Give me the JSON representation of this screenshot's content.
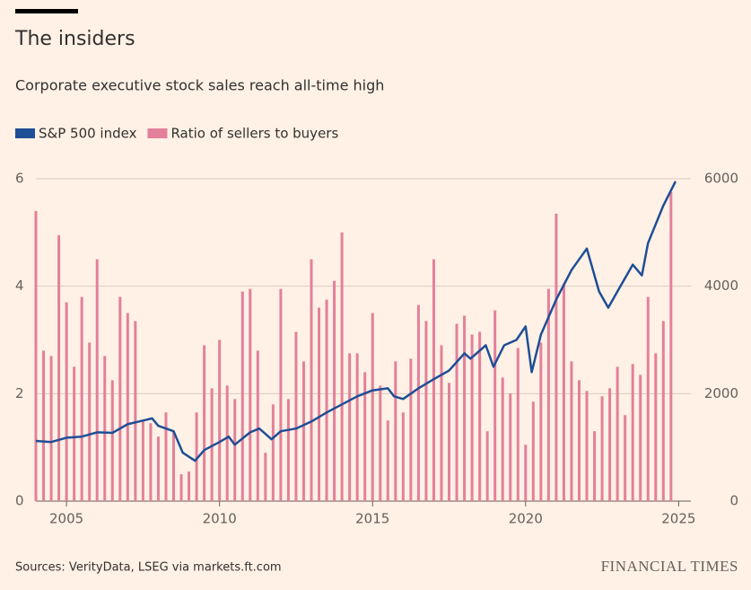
{
  "chart_data": {
    "type": "bar_line",
    "title": "The insiders",
    "subtitle": "Corporate executive stock sales reach all-time high",
    "source": "Sources: VerityData, LSEG via markets.ft.com",
    "brand": "FINANCIAL TIMES",
    "xlim": [
      2004,
      2025.4
    ],
    "xticks": [
      2005,
      2010,
      2015,
      2020,
      2025
    ],
    "ylim": [
      0,
      6
    ],
    "yticks": [
      0,
      2,
      4,
      6
    ],
    "y2lim": [
      0,
      6000
    ],
    "y2ticks": [
      0,
      2000,
      4000,
      6000
    ],
    "grid": true,
    "series": [
      {
        "name": "S&P 500 index",
        "color": "#1f4e96",
        "axis": "y2",
        "kind": "line",
        "x": [
          2004,
          2004.5,
          2005,
          2005.5,
          2006,
          2006.5,
          2007,
          2007.5,
          2007.8,
          2008,
          2008.5,
          2008.8,
          2009.2,
          2009.5,
          2010,
          2010.3,
          2010.5,
          2011,
          2011.3,
          2011.7,
          2012,
          2012.5,
          2013,
          2013.5,
          2014,
          2014.5,
          2015,
          2015.5,
          2015.7,
          2016,
          2016.5,
          2017,
          2017.5,
          2018,
          2018.2,
          2018.7,
          2018.95,
          2019.3,
          2019.7,
          2020,
          2020.2,
          2020.5,
          2021,
          2021.5,
          2022,
          2022.4,
          2022.7,
          2023,
          2023.5,
          2023.8,
          2024,
          2024.5,
          2024.9
        ],
        "values": [
          1120,
          1100,
          1180,
          1200,
          1280,
          1270,
          1430,
          1500,
          1540,
          1400,
          1300,
          900,
          750,
          950,
          1100,
          1200,
          1050,
          1280,
          1350,
          1150,
          1300,
          1350,
          1480,
          1650,
          1800,
          1950,
          2060,
          2100,
          1950,
          1900,
          2100,
          2270,
          2430,
          2750,
          2650,
          2900,
          2500,
          2900,
          3000,
          3250,
          2400,
          3100,
          3750,
          4300,
          4700,
          3900,
          3600,
          3900,
          4400,
          4200,
          4800,
          5500,
          5950
        ]
      },
      {
        "name": "Ratio of sellers to buyers",
        "color": "#e3809b",
        "axis": "y",
        "kind": "bar",
        "x": [
          2004,
          2004.25,
          2004.5,
          2004.75,
          2005,
          2005.25,
          2005.5,
          2005.75,
          2006,
          2006.25,
          2006.5,
          2006.75,
          2007,
          2007.25,
          2007.5,
          2007.75,
          2008,
          2008.25,
          2008.5,
          2008.75,
          2009,
          2009.25,
          2009.5,
          2009.75,
          2010,
          2010.25,
          2010.5,
          2010.75,
          2011,
          2011.25,
          2011.5,
          2011.75,
          2012,
          2012.25,
          2012.5,
          2012.75,
          2013,
          2013.25,
          2013.5,
          2013.75,
          2014,
          2014.25,
          2014.5,
          2014.75,
          2015,
          2015.25,
          2015.5,
          2015.75,
          2016,
          2016.25,
          2016.5,
          2016.75,
          2017,
          2017.25,
          2017.5,
          2017.75,
          2018,
          2018.25,
          2018.5,
          2018.75,
          2019,
          2019.25,
          2019.5,
          2019.75,
          2020,
          2020.25,
          2020.5,
          2020.75,
          2021,
          2021.25,
          2021.5,
          2021.75,
          2022,
          2022.25,
          2022.5,
          2022.75,
          2023,
          2023.25,
          2023.5,
          2023.75,
          2024,
          2024.25,
          2024.5,
          2024.75
        ],
        "values": [
          5.4,
          2.8,
          2.7,
          4.95,
          3.7,
          2.5,
          3.8,
          2.95,
          4.5,
          2.7,
          2.25,
          3.8,
          3.5,
          3.35,
          1.5,
          1.45,
          1.2,
          1.65,
          1.3,
          0.5,
          0.55,
          1.65,
          2.9,
          2.1,
          3.0,
          2.15,
          1.9,
          3.9,
          3.95,
          2.8,
          0.9,
          1.8,
          3.95,
          1.9,
          3.15,
          2.6,
          4.5,
          3.6,
          3.75,
          4.1,
          5.0,
          2.75,
          2.75,
          2.4,
          3.5,
          2.15,
          1.5,
          2.6,
          1.65,
          2.65,
          3.65,
          3.35,
          4.5,
          2.9,
          2.2,
          3.3,
          3.45,
          3.1,
          3.15,
          1.3,
          3.55,
          2.3,
          2.0,
          2.85,
          1.05,
          1.85,
          2.95,
          3.95,
          5.35,
          4.05,
          2.6,
          2.25,
          2.05,
          1.3,
          1.95,
          2.1,
          2.5,
          1.6,
          2.55,
          2.35,
          3.8,
          2.75,
          3.35,
          5.75
        ]
      }
    ]
  }
}
